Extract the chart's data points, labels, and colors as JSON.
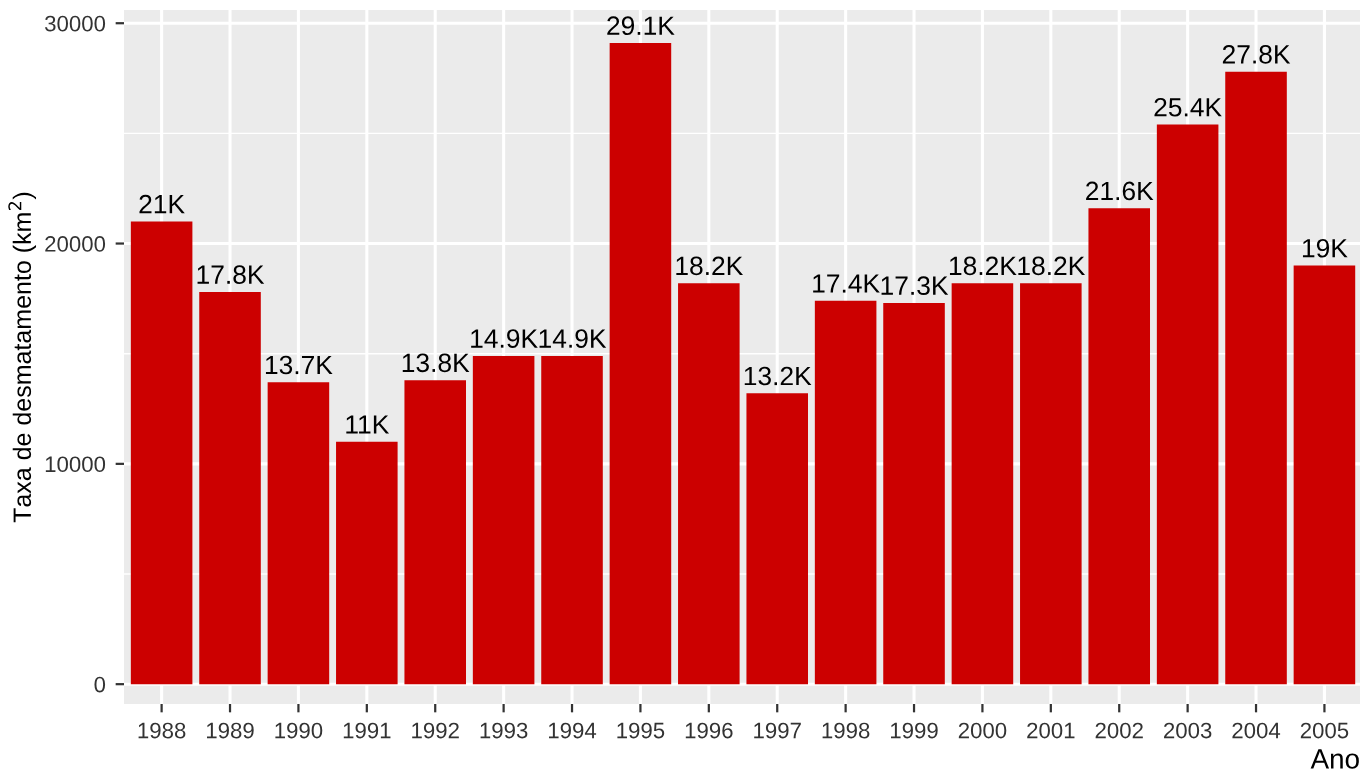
{
  "chart_data": {
    "type": "bar",
    "xlabel": "Ano",
    "ylabel": "Taxa de desmatamento (km$^{2}$)",
    "categories": [
      "1988",
      "1989",
      "1990",
      "1991",
      "1992",
      "1993",
      "1994",
      "1995",
      "1996",
      "1997",
      "1998",
      "1999",
      "2000",
      "2001",
      "2002",
      "2003",
      "2004",
      "2005"
    ],
    "values": [
      21000,
      17800,
      13700,
      11000,
      13800,
      14900,
      14900,
      29100,
      18200,
      13200,
      17400,
      17300,
      18200,
      18200,
      21600,
      25400,
      27800,
      19000
    ],
    "value_labels": [
      "21K",
      "17.8K",
      "13.7K",
      "11K",
      "13.8K",
      "14.9K",
      "14.9K",
      "29.1K",
      "18.2K",
      "13.2K",
      "17.4K",
      "17.3K",
      "18.2K",
      "18.2K",
      "21.6K",
      "25.4K",
      "27.8K",
      "19K"
    ],
    "color": "#cc0000",
    "ylim": [
      -900,
      30600
    ],
    "yticks": [
      0,
      10000,
      20000,
      30000
    ],
    "grid": true
  }
}
